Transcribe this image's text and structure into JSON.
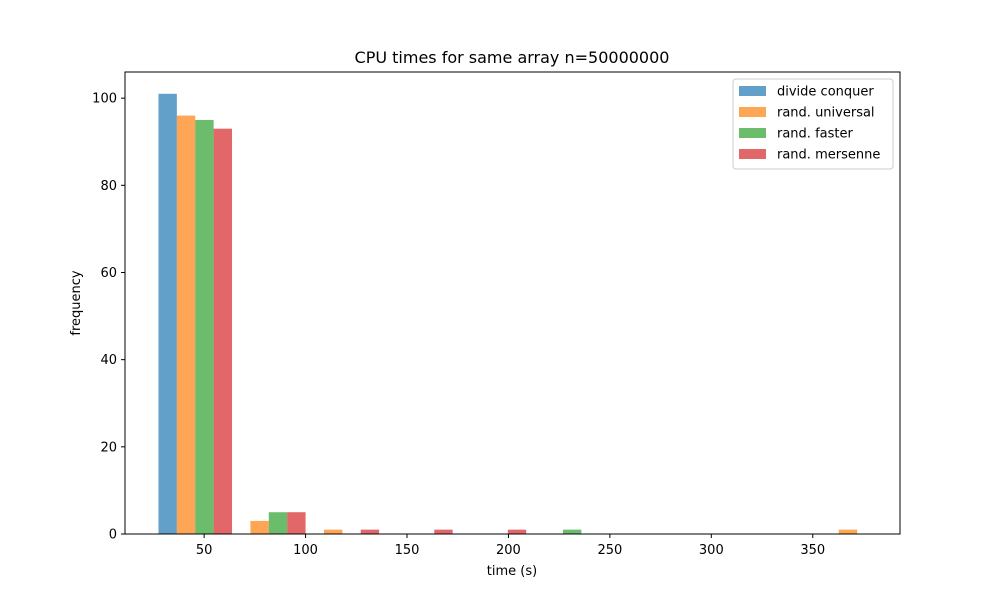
{
  "chart_data": {
    "type": "bar",
    "title": "CPU times for same array n=50000000",
    "xlabel": "time (s)",
    "ylabel": "frequency",
    "xlim": [
      11,
      393
    ],
    "ylim": [
      0,
      106
    ],
    "xticks": [
      50,
      100,
      150,
      200,
      250,
      300,
      350
    ],
    "yticks": [
      0,
      20,
      40,
      60,
      80,
      100
    ],
    "bin_start": 27.5,
    "bin_width": 36.25,
    "legend_position": "top-right",
    "series": [
      {
        "name": "divide conquer",
        "color": "#1f77b4",
        "values": [
          101,
          0,
          0,
          0,
          0,
          0,
          0,
          0,
          0,
          0
        ]
      },
      {
        "name": "rand. universal",
        "color": "#ff7f0e",
        "values": [
          96,
          3,
          1,
          0,
          0,
          0,
          0,
          0,
          0,
          1
        ]
      },
      {
        "name": "rand. faster",
        "color": "#2ca02c",
        "values": [
          95,
          5,
          0,
          0,
          0,
          1,
          0,
          0,
          0,
          0
        ]
      },
      {
        "name": "rand. mersenne",
        "color": "#d62728",
        "values": [
          93,
          5,
          1,
          1,
          1,
          0,
          0,
          0,
          0,
          0
        ]
      }
    ]
  }
}
